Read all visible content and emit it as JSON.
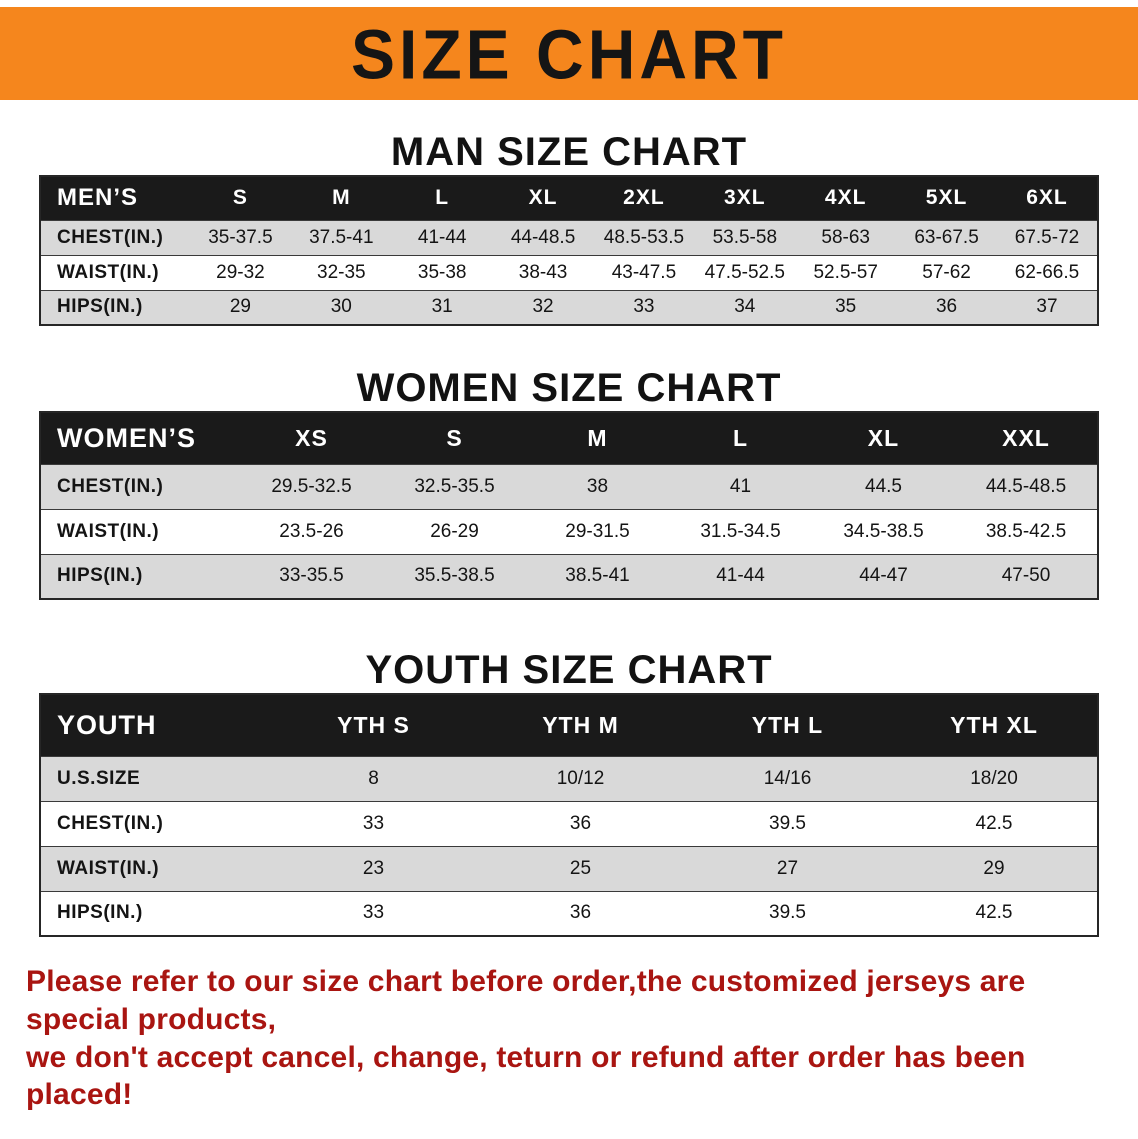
{
  "colors": {
    "banner_bg": "#f5861d",
    "header_bg": "#1a1a1a",
    "row_shade": "#d9d9d9",
    "disclaimer_color": "#a91511"
  },
  "banner": {
    "title": "SIZE CHART"
  },
  "sections": [
    {
      "heading": "MAN SIZE CHART",
      "table": {
        "header": [
          "MEN’S",
          "S",
          "M",
          "L",
          "XL",
          "2XL",
          "3XL",
          "4XL",
          "5XL",
          "6XL"
        ],
        "rows": [
          {
            "label": "CHEST(IN.)",
            "values": [
              "35-37.5",
              "37.5-41",
              "41-44",
              "44-48.5",
              "48.5-53.5",
              "53.5-58",
              "58-63",
              "63-67.5",
              "67.5-72"
            ]
          },
          {
            "label": "WAIST(IN.)",
            "values": [
              "29-32",
              "32-35",
              "35-38",
              "38-43",
              "43-47.5",
              "47.5-52.5",
              "52.5-57",
              "57-62",
              "62-66.5"
            ]
          },
          {
            "label": "HIPS(IN.)",
            "values": [
              "29",
              "30",
              "31",
              "32",
              "33",
              "34",
              "35",
              "36",
              "37"
            ]
          }
        ]
      }
    },
    {
      "heading": "WOMEN SIZE CHART",
      "table": {
        "header": [
          "WOMEN’S",
          "XS",
          "S",
          "M",
          "L",
          "XL",
          "XXL"
        ],
        "rows": [
          {
            "label": "CHEST(IN.)",
            "values": [
              "29.5-32.5",
              "32.5-35.5",
              "38",
              "41",
              "44.5",
              "44.5-48.5"
            ]
          },
          {
            "label": "WAIST(IN.)",
            "values": [
              "23.5-26",
              "26-29",
              "29-31.5",
              "31.5-34.5",
              "34.5-38.5",
              "38.5-42.5"
            ]
          },
          {
            "label": "HIPS(IN.)",
            "values": [
              "33-35.5",
              "35.5-38.5",
              "38.5-41",
              "41-44",
              "44-47",
              "47-50"
            ]
          }
        ]
      }
    },
    {
      "heading": "YOUTH SIZE CHART",
      "table": {
        "header": [
          "YOUTH",
          "YTH S",
          "YTH M",
          "YTH L",
          "YTH XL"
        ],
        "rows": [
          {
            "label": "U.S.SIZE",
            "values": [
              "8",
              "10/12",
              "14/16",
              "18/20"
            ]
          },
          {
            "label": "CHEST(IN.)",
            "values": [
              "33",
              "36",
              "39.5",
              "42.5"
            ]
          },
          {
            "label": "WAIST(IN.)",
            "values": [
              "23",
              "25",
              "27",
              "29"
            ]
          },
          {
            "label": "HIPS(IN.)",
            "values": [
              "33",
              "36",
              "39.5",
              "42.5"
            ]
          }
        ]
      }
    }
  ],
  "disclaimer": {
    "line1": "Please refer to our size chart before order,the customized jerseys are special products,",
    "line2": "we don't accept cancel, change, teturn or refund after order has been placed!"
  }
}
